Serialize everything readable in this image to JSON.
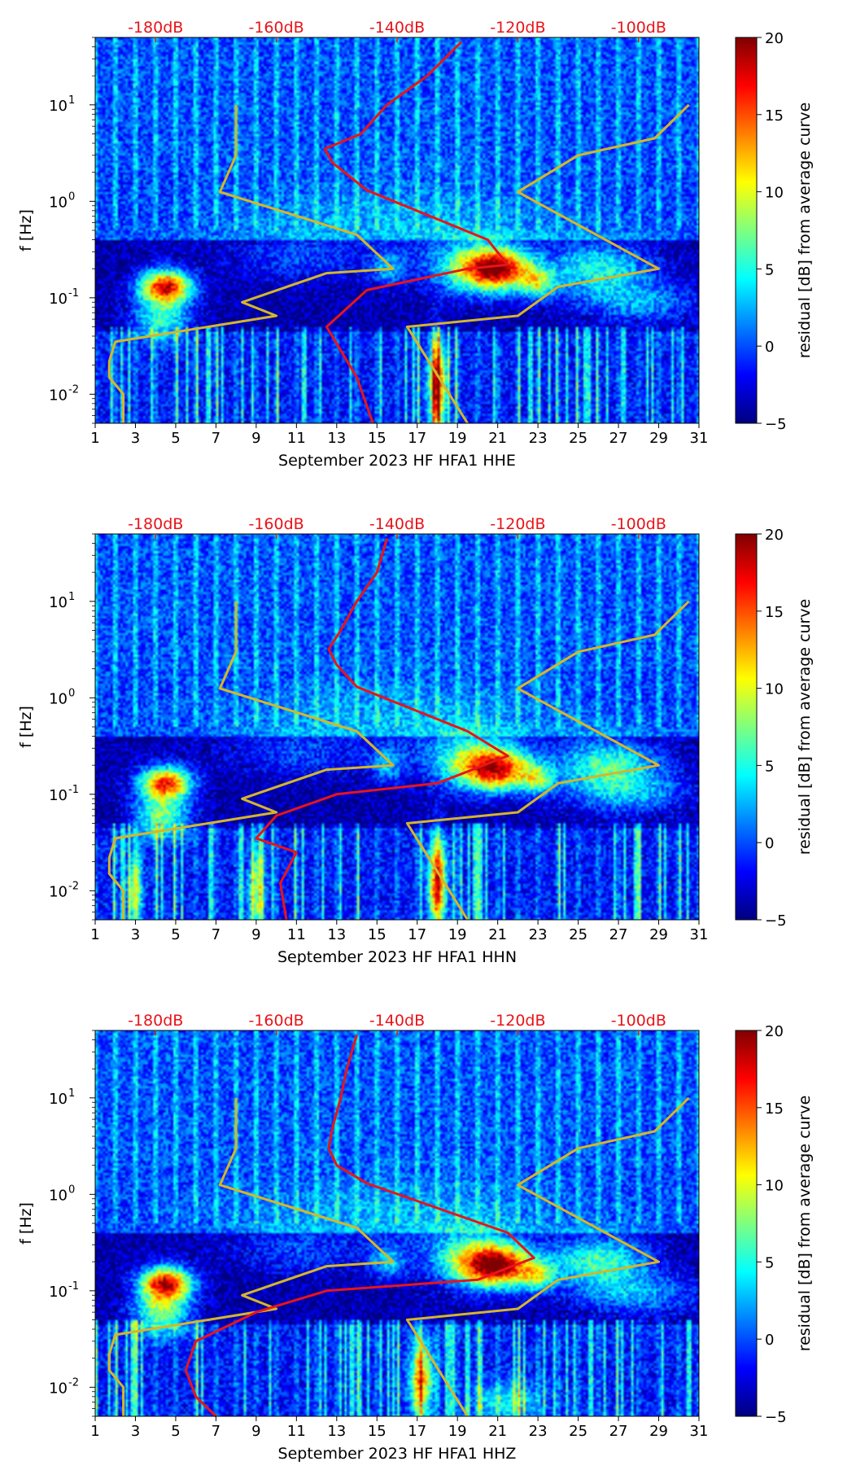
{
  "colors": {
    "noise_model_line": "#d4b62a",
    "median_line": "#e8141a",
    "db_scale_text": "#e8141a",
    "axis": "#000000",
    "colormap": [
      "#00007f",
      "#0000ff",
      "#007fff",
      "#00ffff",
      "#7fff7f",
      "#ffff00",
      "#ff7f00",
      "#ff0000",
      "#7f0000"
    ]
  },
  "chart_data": [
    {
      "type": "heatmap",
      "title": "",
      "xlabel": "September 2023 HF HFA1  HHE",
      "ylabel": "f [Hz]",
      "colorbar_label": "residual [dB] from average curve",
      "x_ticks": [
        "1",
        "3",
        "5",
        "7",
        "9",
        "11",
        "13",
        "15",
        "17",
        "19",
        "21",
        "23",
        "25",
        "27",
        "29",
        "31"
      ],
      "y_ticks": [
        "10",
        "10",
        "10",
        "10"
      ],
      "y_tick_exponents": [
        "-2",
        "-1",
        "0",
        "1"
      ],
      "y_tick_values": [
        0.01,
        0.1,
        1,
        10
      ],
      "top_db_ticks": [
        "-180dB",
        "-160dB",
        "-140dB",
        "-120dB",
        "-100dB"
      ],
      "top_db_positions_day": [
        4,
        10,
        16,
        22,
        28
      ],
      "colorbar_ticks": [
        "20",
        "15",
        "10",
        "5",
        "0",
        "−5"
      ],
      "colorbar_values": [
        20,
        15,
        10,
        5,
        0,
        -5
      ],
      "xlim": [
        1,
        31
      ],
      "ylim": [
        0.005,
        50
      ],
      "clim": [
        -5,
        20
      ],
      "blobs": [
        {
          "day": 4.5,
          "f": 0.13,
          "sd": 0.9,
          "sf": 0.12,
          "amp": 22
        },
        {
          "day": 4.3,
          "f": 0.06,
          "sd": 1.0,
          "sf": 0.15,
          "amp": 10
        },
        {
          "day": 21.0,
          "f": 0.2,
          "sd": 1.2,
          "sf": 0.15,
          "amp": 20
        },
        {
          "day": 19.5,
          "f": 0.2,
          "sd": 1.5,
          "sf": 0.2,
          "amp": 8
        },
        {
          "day": 26.0,
          "f": 0.2,
          "sd": 1.8,
          "sf": 0.18,
          "amp": 9
        },
        {
          "day": 28.0,
          "f": 0.09,
          "sd": 2.2,
          "sf": 0.15,
          "amp": 6
        },
        {
          "day": 23.0,
          "f": 0.14,
          "sd": 0.6,
          "sf": 0.1,
          "amp": 10
        },
        {
          "day": 15.5,
          "f": 0.2,
          "sd": 0.6,
          "sf": 0.12,
          "amp": 6
        },
        {
          "day": 11.0,
          "f": 0.25,
          "sd": 2.0,
          "sf": 0.15,
          "amp": 3
        },
        {
          "day": 16.0,
          "f": 0.6,
          "sd": 6.0,
          "sf": 0.3,
          "amp": 3
        },
        {
          "day": 18.0,
          "f": 0.012,
          "sd": 0.3,
          "sf": 0.35,
          "amp": 18
        }
      ],
      "noise_model_curve": {
        "x": [
          8,
          8,
          7.2,
          14,
          15.8,
          12.5,
          8.3,
          10,
          2,
          1.7,
          1.7,
          2.4,
          2.4
        ],
        "f": [
          10,
          3,
          1.25,
          0.45,
          0.2,
          0.18,
          0.09,
          0.065,
          0.035,
          0.022,
          0.015,
          0.01,
          0.005
        ]
      },
      "noise_model_curve_2": {
        "x": [
          30.5,
          28.8,
          25,
          22,
          29,
          24,
          22,
          16.5,
          19.5
        ],
        "f": [
          10,
          4.5,
          3,
          1.25,
          0.2,
          0.13,
          0.065,
          0.05,
          0.005
        ]
      },
      "median_curve": {
        "x": [
          19.2,
          17.5,
          15.5,
          14.2,
          12.4,
          12.8,
          14.5,
          20.5,
          21.5,
          19.5,
          14.5,
          12.5,
          14,
          14.8
        ],
        "f": [
          45,
          20,
          10,
          5,
          3.5,
          2.5,
          1.3,
          0.4,
          0.22,
          0.2,
          0.12,
          0.05,
          0.015,
          0.005
        ]
      }
    },
    {
      "type": "heatmap",
      "title": "",
      "xlabel": "September 2023 HF HFA1  HHN",
      "ylabel": "f [Hz]",
      "colorbar_label": "residual [dB] from average curve",
      "x_ticks": [
        "1",
        "3",
        "5",
        "7",
        "9",
        "11",
        "13",
        "15",
        "17",
        "19",
        "21",
        "23",
        "25",
        "27",
        "29",
        "31"
      ],
      "y_ticks": [
        "10",
        "10",
        "10",
        "10"
      ],
      "y_tick_exponents": [
        "-2",
        "-1",
        "0",
        "1"
      ],
      "y_tick_values": [
        0.01,
        0.1,
        1,
        10
      ],
      "top_db_ticks": [
        "-180dB",
        "-160dB",
        "-140dB",
        "-120dB",
        "-100dB"
      ],
      "top_db_positions_day": [
        4,
        10,
        16,
        22,
        28
      ],
      "colorbar_ticks": [
        "20",
        "15",
        "10",
        "5",
        "0",
        "−5"
      ],
      "colorbar_values": [
        20,
        15,
        10,
        5,
        0,
        -5
      ],
      "xlim": [
        1,
        31
      ],
      "ylim": [
        0.005,
        50
      ],
      "clim": [
        -5,
        20
      ],
      "blobs": [
        {
          "day": 4.5,
          "f": 0.13,
          "sd": 0.9,
          "sf": 0.12,
          "amp": 20
        },
        {
          "day": 4.3,
          "f": 0.06,
          "sd": 1.0,
          "sf": 0.15,
          "amp": 11
        },
        {
          "day": 21.0,
          "f": 0.18,
          "sd": 1.2,
          "sf": 0.15,
          "amp": 18
        },
        {
          "day": 19.5,
          "f": 0.22,
          "sd": 1.5,
          "sf": 0.2,
          "amp": 9
        },
        {
          "day": 26.5,
          "f": 0.2,
          "sd": 1.8,
          "sf": 0.18,
          "amp": 10
        },
        {
          "day": 27.5,
          "f": 0.1,
          "sd": 2.2,
          "sf": 0.15,
          "amp": 6
        },
        {
          "day": 23.0,
          "f": 0.14,
          "sd": 0.6,
          "sf": 0.1,
          "amp": 9
        },
        {
          "day": 15.5,
          "f": 0.2,
          "sd": 0.6,
          "sf": 0.12,
          "amp": 6
        },
        {
          "day": 11.0,
          "f": 0.25,
          "sd": 2.0,
          "sf": 0.15,
          "amp": 3
        },
        {
          "day": 16.0,
          "f": 0.6,
          "sd": 6.0,
          "sf": 0.3,
          "amp": 3
        },
        {
          "day": 18.0,
          "f": 0.012,
          "sd": 0.3,
          "sf": 0.35,
          "amp": 18
        },
        {
          "day": 3.0,
          "f": 0.01,
          "sd": 0.25,
          "sf": 0.3,
          "amp": 10
        },
        {
          "day": 9.0,
          "f": 0.01,
          "sd": 0.3,
          "sf": 0.3,
          "amp": 8
        }
      ],
      "noise_model_curve": {
        "x": [
          8,
          8,
          7.2,
          14,
          15.8,
          12.5,
          8.3,
          10,
          2,
          1.7,
          1.7,
          2.4,
          2.4
        ],
        "f": [
          10,
          3,
          1.25,
          0.45,
          0.2,
          0.18,
          0.09,
          0.065,
          0.035,
          0.022,
          0.015,
          0.01,
          0.005
        ]
      },
      "noise_model_curve_2": {
        "x": [
          30.5,
          28.8,
          25,
          22,
          29,
          24,
          22,
          16.5,
          19.5
        ],
        "f": [
          10,
          4.5,
          3,
          1.25,
          0.2,
          0.13,
          0.065,
          0.05,
          0.005
        ]
      },
      "median_curve": {
        "x": [
          15.5,
          15,
          14,
          13.2,
          12.6,
          13,
          14,
          19.5,
          21.5,
          18,
          13,
          10,
          9,
          11,
          10.2,
          10.5
        ],
        "f": [
          45,
          20,
          10,
          5,
          3.2,
          2.2,
          1.3,
          0.45,
          0.25,
          0.13,
          0.1,
          0.06,
          0.035,
          0.025,
          0.012,
          0.005
        ]
      }
    },
    {
      "type": "heatmap",
      "title": "",
      "xlabel": "September 2023 HF HFA1  HHZ",
      "ylabel": "f [Hz]",
      "colorbar_label": "residual [dB] from average curve",
      "x_ticks": [
        "1",
        "3",
        "5",
        "7",
        "9",
        "11",
        "13",
        "15",
        "17",
        "19",
        "21",
        "23",
        "25",
        "27",
        "29",
        "31"
      ],
      "y_ticks": [
        "10",
        "10",
        "10",
        "10"
      ],
      "y_tick_exponents": [
        "-2",
        "-1",
        "0",
        "1"
      ],
      "y_tick_values": [
        0.01,
        0.1,
        1,
        10
      ],
      "top_db_ticks": [
        "-180dB",
        "-160dB",
        "-140dB",
        "-120dB",
        "-100dB"
      ],
      "top_db_positions_day": [
        4,
        10,
        16,
        22,
        28
      ],
      "colorbar_ticks": [
        "20",
        "15",
        "10",
        "5",
        "0",
        "−5"
      ],
      "colorbar_values": [
        20,
        15,
        10,
        5,
        0,
        -5
      ],
      "xlim": [
        1,
        31
      ],
      "ylim": [
        0.005,
        50
      ],
      "clim": [
        -5,
        20
      ],
      "blobs": [
        {
          "day": 4.5,
          "f": 0.12,
          "sd": 0.9,
          "sf": 0.12,
          "amp": 22
        },
        {
          "day": 4.3,
          "f": 0.06,
          "sd": 1.0,
          "sf": 0.15,
          "amp": 12
        },
        {
          "day": 21.0,
          "f": 0.18,
          "sd": 1.2,
          "sf": 0.15,
          "amp": 21
        },
        {
          "day": 19.5,
          "f": 0.22,
          "sd": 1.5,
          "sf": 0.2,
          "amp": 9
        },
        {
          "day": 26.0,
          "f": 0.2,
          "sd": 1.8,
          "sf": 0.18,
          "amp": 10
        },
        {
          "day": 28.0,
          "f": 0.09,
          "sd": 2.2,
          "sf": 0.15,
          "amp": 6
        },
        {
          "day": 23.0,
          "f": 0.14,
          "sd": 0.6,
          "sf": 0.1,
          "amp": 9
        },
        {
          "day": 15.5,
          "f": 0.2,
          "sd": 0.6,
          "sf": 0.12,
          "amp": 7
        },
        {
          "day": 11.0,
          "f": 0.25,
          "sd": 2.0,
          "sf": 0.15,
          "amp": 3
        },
        {
          "day": 16.0,
          "f": 0.6,
          "sd": 6.0,
          "sf": 0.3,
          "amp": 3
        },
        {
          "day": 17.2,
          "f": 0.012,
          "sd": 0.4,
          "sf": 0.3,
          "amp": 14
        },
        {
          "day": 21.5,
          "f": 0.007,
          "sd": 1.2,
          "sf": 0.15,
          "amp": 6
        }
      ],
      "noise_model_curve": {
        "x": [
          8,
          8,
          7.2,
          14,
          15.8,
          12.5,
          8.3,
          10,
          2,
          1.7,
          1.7,
          2.4,
          2.4
        ],
        "f": [
          10,
          3,
          1.25,
          0.45,
          0.2,
          0.18,
          0.09,
          0.065,
          0.035,
          0.022,
          0.015,
          0.01,
          0.005
        ]
      },
      "noise_model_curve_2": {
        "x": [
          30.5,
          28.8,
          25,
          22,
          29,
          24,
          22,
          16.5,
          19.5
        ],
        "f": [
          10,
          4.5,
          3,
          1.25,
          0.2,
          0.13,
          0.065,
          0.05,
          0.005
        ]
      },
      "median_curve": {
        "x": [
          14,
          13.5,
          13.2,
          12.8,
          12.6,
          13,
          14.5,
          21.5,
          22.8,
          20,
          12.5,
          9,
          6,
          5.5,
          6,
          7
        ],
        "f": [
          45,
          20,
          10,
          5,
          3,
          2,
          1.3,
          0.4,
          0.22,
          0.13,
          0.1,
          0.06,
          0.03,
          0.015,
          0.008,
          0.005
        ]
      }
    }
  ]
}
